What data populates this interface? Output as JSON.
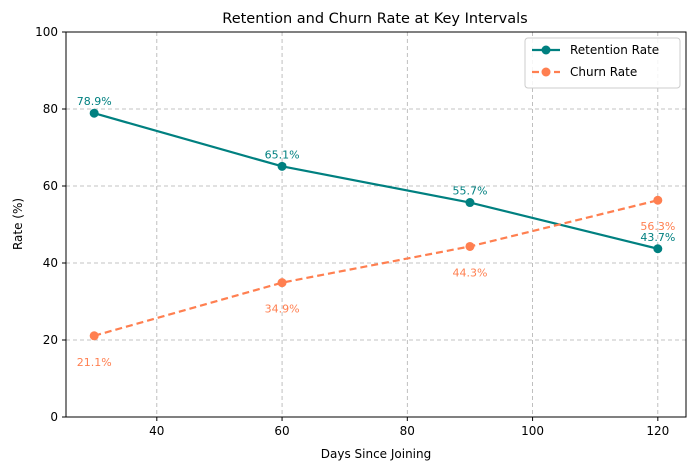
{
  "chart_data": {
    "type": "line",
    "title": "Retention and Churn Rate at Key Intervals",
    "xlabel": "Days Since Joining",
    "ylabel": "Rate (%)",
    "x": [
      30,
      60,
      90,
      120
    ],
    "xlim": [
      25.5,
      124.5
    ],
    "ylim": [
      0,
      100
    ],
    "xticks": [
      40,
      60,
      80,
      100,
      120
    ],
    "yticks": [
      0,
      20,
      40,
      60,
      80,
      100
    ],
    "grid": true,
    "legend_position": "top-right",
    "series": [
      {
        "name": "Retention Rate",
        "values": [
          78.9,
          65.1,
          55.7,
          43.7
        ],
        "labels": [
          "78.9%",
          "65.1%",
          "55.7%",
          "43.7%"
        ],
        "color": "#008080",
        "line_style": "solid",
        "marker": "circle",
        "label_position": "above"
      },
      {
        "name": "Churn Rate",
        "values": [
          21.1,
          34.9,
          44.3,
          56.3
        ],
        "labels": [
          "21.1%",
          "34.9%",
          "44.3%",
          "56.3%"
        ],
        "color": "#FF7F50",
        "line_style": "dashed",
        "marker": "circle",
        "label_position": "below"
      }
    ]
  }
}
